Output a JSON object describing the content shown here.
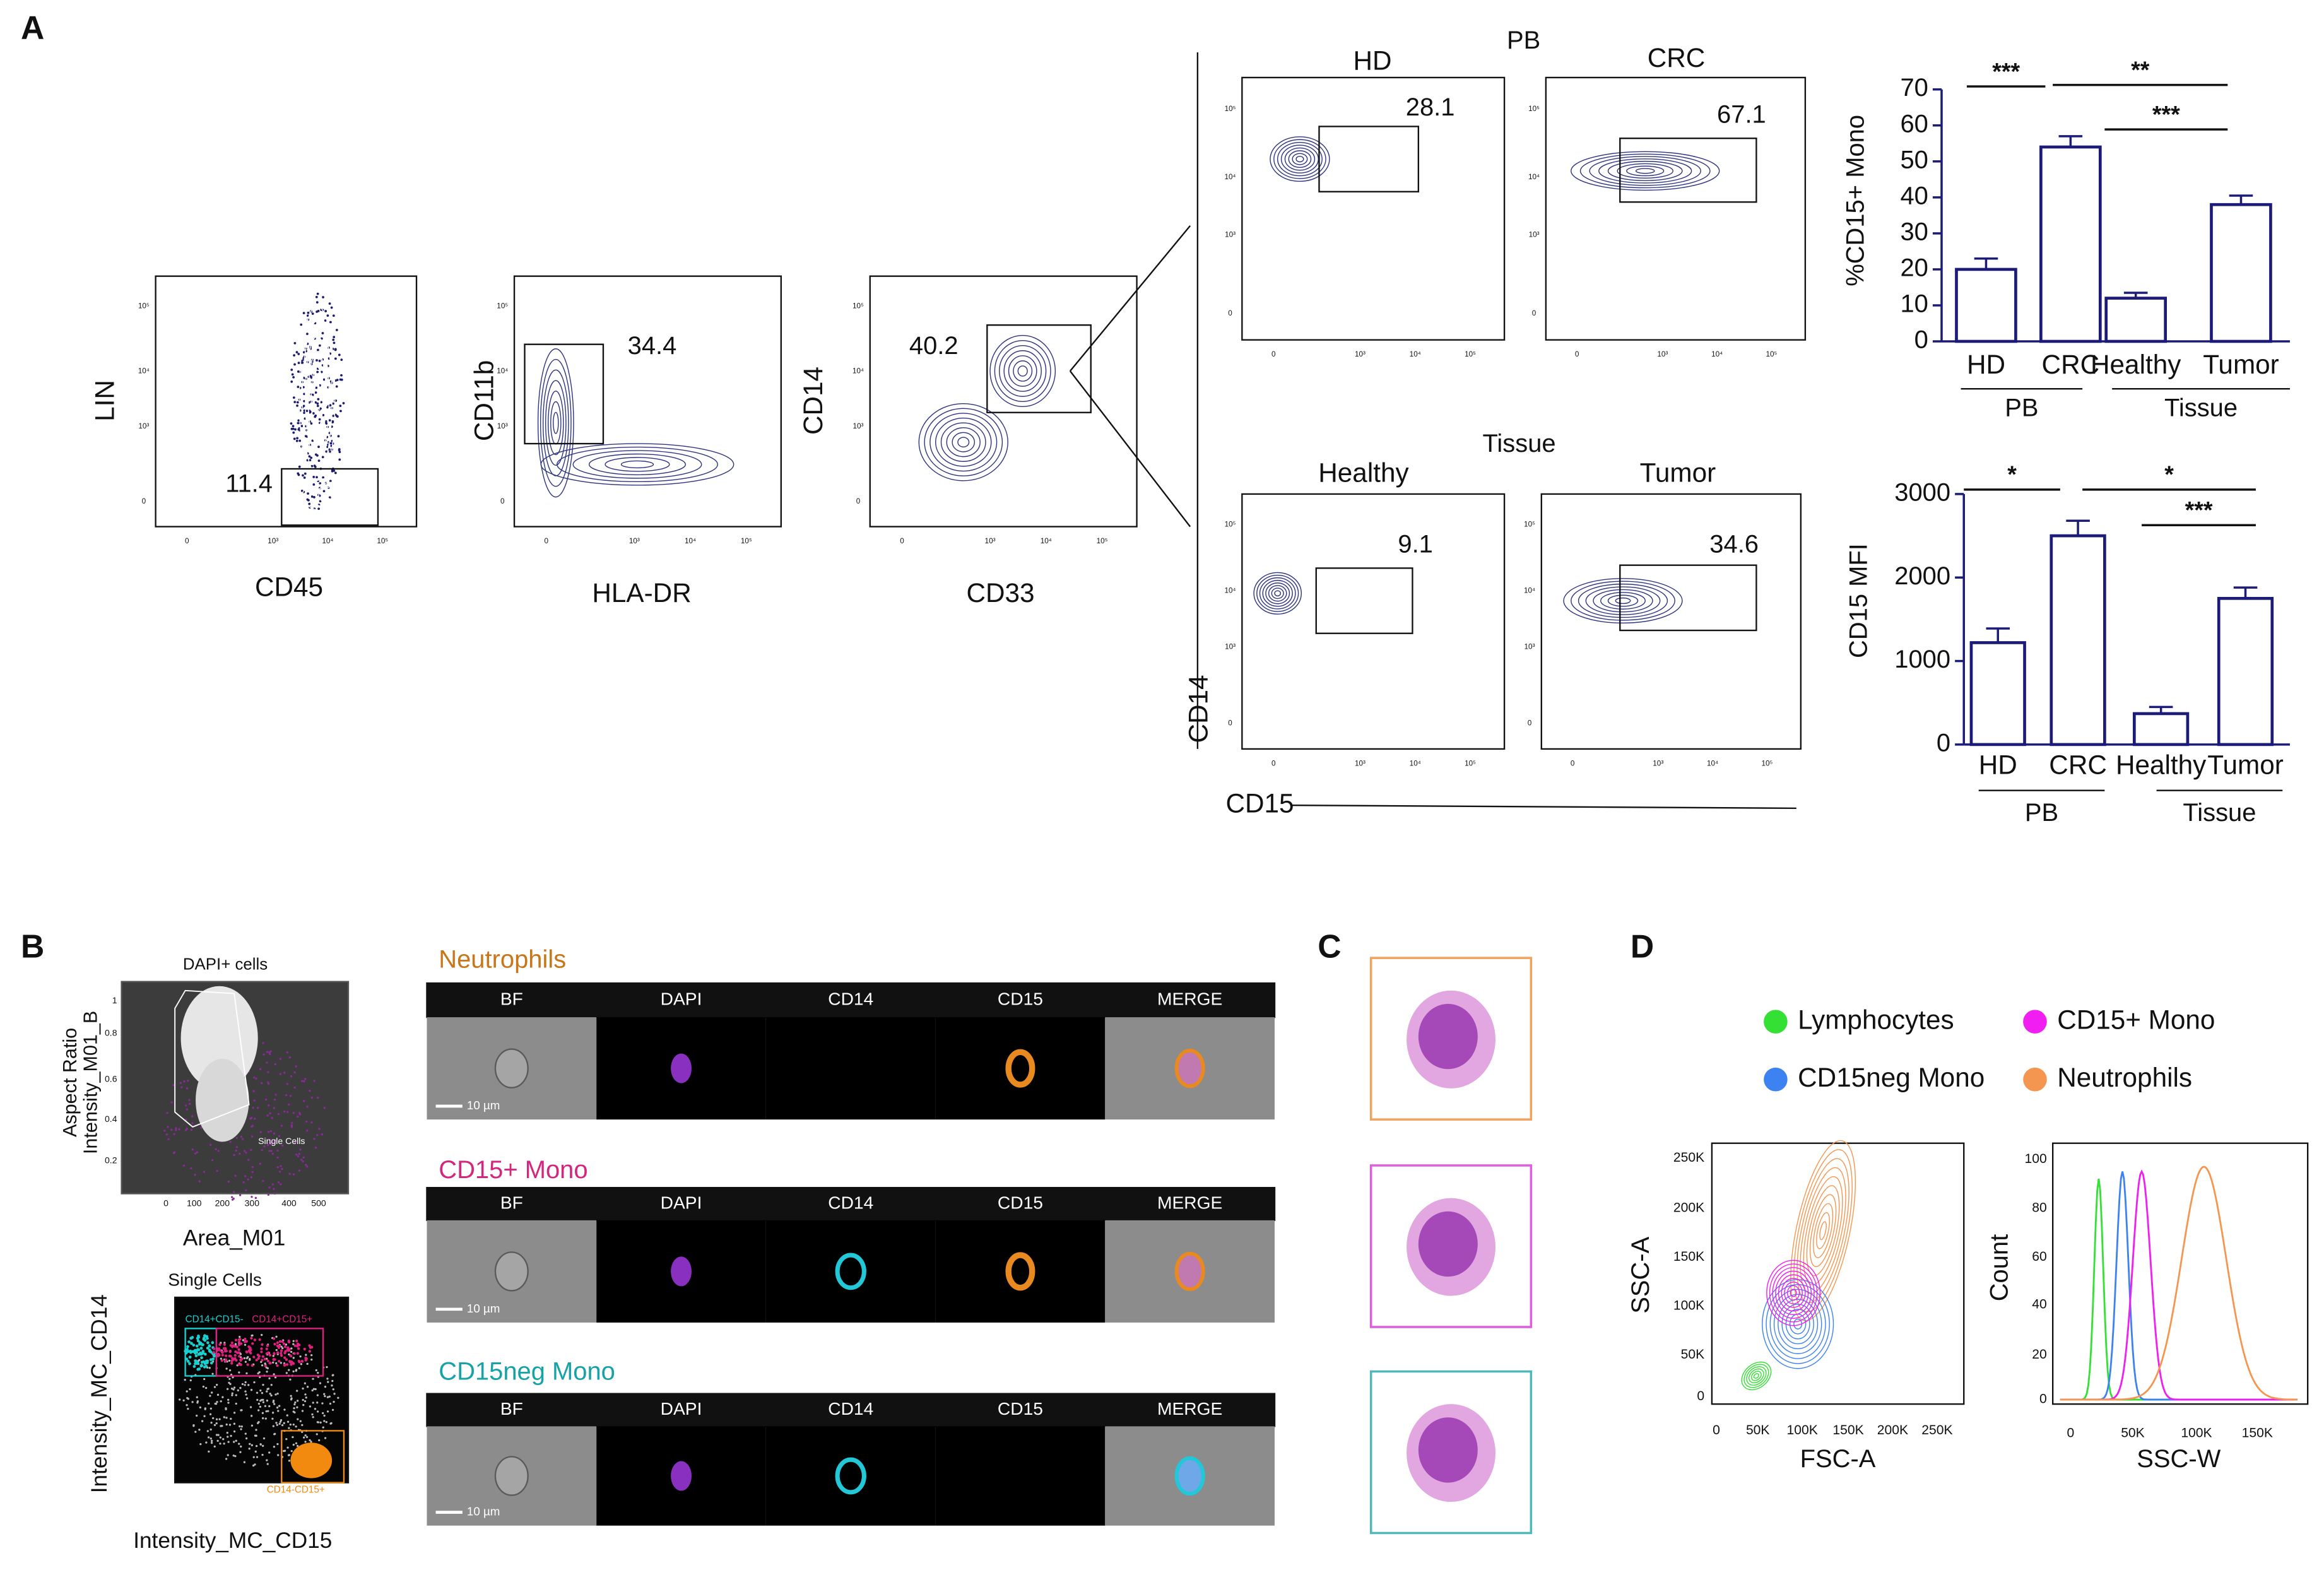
{
  "panel_labels": [
    "A",
    "B",
    "C",
    "D"
  ],
  "panel_a": {
    "gating": [
      {
        "y_label": "LIN",
        "x_label": "CD45",
        "gate": 11.4
      },
      {
        "y_label": "CD11b",
        "x_label": "HLA-DR",
        "gate": 34.4
      },
      {
        "y_label": "CD14",
        "x_label": "CD33",
        "gate": 40.2
      }
    ],
    "log_ticks": [
      "0",
      "10³",
      "10⁴",
      "10⁵"
    ],
    "cd15_plots": {
      "pb_title": "PB",
      "tissue_title": "Tissue",
      "y_label": "CD14",
      "x_label": "CD15",
      "plots": [
        {
          "title": "HD",
          "gate": 28.1
        },
        {
          "title": "CRC",
          "gate": 67.1
        },
        {
          "title": "Healthy",
          "gate": 9.1
        },
        {
          "title": "Tumor",
          "gate": 34.6
        }
      ]
    }
  },
  "chart_data": [
    {
      "type": "bar",
      "y_label": "%CD15+ Mono",
      "categories": [
        "HD",
        "CRC",
        "Healthy",
        "Tumor"
      ],
      "values": [
        20,
        54,
        12,
        38
      ],
      "errors": [
        3,
        3,
        1.5,
        2.5
      ],
      "color": "#1c1c78",
      "ylim": [
        0,
        70
      ],
      "yticks": [
        0,
        10,
        20,
        30,
        40,
        50,
        60,
        70
      ],
      "groups": [
        "PB",
        "Tissue"
      ],
      "significance": [
        "***",
        "**",
        "***"
      ]
    },
    {
      "type": "bar",
      "y_label": "CD15 MFI",
      "categories": [
        "HD",
        "CRC",
        "Healthy",
        "Tumor"
      ],
      "values": [
        1220,
        2500,
        370,
        1750
      ],
      "errors": [
        170,
        180,
        80,
        130
      ],
      "color": "#1c1c78",
      "ylim": [
        0,
        3000
      ],
      "yticks": [
        0,
        1000,
        2000,
        3000
      ],
      "groups": [
        "PB",
        "Tissue"
      ],
      "significance": [
        "*",
        "*",
        "***"
      ]
    }
  ],
  "panel_b": {
    "scatter_top": {
      "title": "DAPI+ cells",
      "y_label": [
        "Aspect Ratio",
        "Intensity_M01_B"
      ],
      "x_label": "Area_M01",
      "gate_label": "Single Cells",
      "xticks": [
        "0",
        "100",
        "200",
        "300",
        "400",
        "500"
      ],
      "yticks": [
        "0.2",
        "0.4",
        "0.6",
        "0.8",
        "1"
      ]
    },
    "scatter_bottom": {
      "title": "Single Cells",
      "y_label": "Intensity_MC_CD14",
      "x_label": "Intensity_MC_CD15",
      "gates": [
        "CD14+CD15-",
        "CD14+CD15+",
        "CD14-CD15+"
      ]
    },
    "imaging": {
      "channels": [
        "BF",
        "DAPI",
        "CD14",
        "CD15",
        "MERGE"
      ],
      "scale_bar": "10 µm",
      "rows": [
        {
          "title": "Neutrophils",
          "color": "#c8761a"
        },
        {
          "title": "CD15+ Mono",
          "color": "#d4267e"
        },
        {
          "title": "CD15neg Mono",
          "color": "#17a2a8"
        }
      ]
    }
  },
  "panel_c": {
    "frames": [
      "#f0a35c",
      "#e05ce0",
      "#4fb8b8"
    ]
  },
  "panel_d": {
    "legend": [
      {
        "name": "Lymphocytes",
        "color": "#33e033"
      },
      {
        "name": "CD15+ Mono",
        "color": "#f01ef0"
      },
      {
        "name": "CD15neg Mono",
        "color": "#3c82f0"
      },
      {
        "name": "Neutrophils",
        "color": "#f59650"
      }
    ],
    "scatter": {
      "x_label": "FSC-A",
      "y_label": "SSC-A",
      "xticks": [
        "0",
        "50K",
        "100K",
        "150K",
        "200K",
        "250K"
      ],
      "yticks": [
        "0",
        "50K",
        "100K",
        "150K",
        "200K",
        "250K"
      ]
    },
    "histogram": {
      "x_label": "SSC-W",
      "y_label": "Count",
      "xticks": [
        "0",
        "50K",
        "100K",
        "150K"
      ],
      "yticks": [
        "0",
        "20",
        "40",
        "60",
        "80",
        "100"
      ]
    }
  }
}
